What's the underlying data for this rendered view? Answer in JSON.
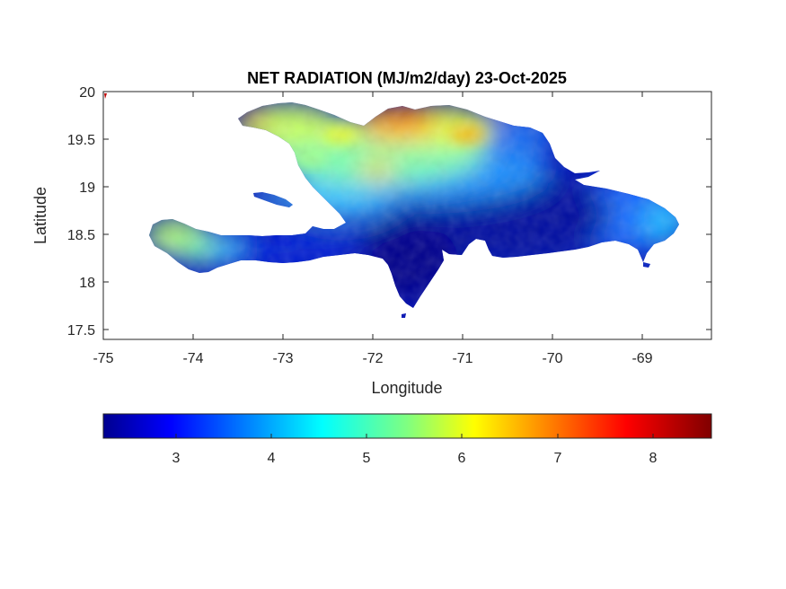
{
  "title": "NET RADIATION (MJ/m2/day) 23-Oct-2025",
  "xlabel": "Longitude",
  "ylabel": "Latitude",
  "x_ticks": [
    "-75",
    "-74",
    "-73",
    "-72",
    "-71",
    "-70",
    "-69"
  ],
  "y_ticks": [
    "20",
    "19.5",
    "19",
    "18.5",
    "18",
    "17.5"
  ],
  "colorbar_ticks": [
    "3",
    "4",
    "5",
    "6",
    "7",
    "8"
  ],
  "chart_data": {
    "type": "heatmap",
    "title": "NET RADIATION (MJ/m2/day) 23-Oct-2025",
    "xlabel": "Longitude",
    "ylabel": "Latitude",
    "xlim": [
      -75,
      -68.23
    ],
    "ylim": [
      17.39,
      20
    ],
    "colormap": "jet",
    "color_range": [
      2.2,
      8.6
    ],
    "colorbar_ticks": [
      3,
      4,
      5,
      6,
      7,
      8
    ],
    "regions": [
      {
        "name": "northwest Haiti peninsula",
        "approx_value": 6.2
      },
      {
        "name": "northern Haiti / north coast",
        "approx_value": 6.8
      },
      {
        "name": "southwest Haiti peninsula",
        "approx_value": 5.5
      },
      {
        "name": "southern coast",
        "approx_value": 3.0
      },
      {
        "name": "central Dominican Republic",
        "approx_value": 2.6
      },
      {
        "name": "eastern Dominican Republic",
        "approx_value": 3.8
      }
    ]
  },
  "colors": {
    "jet": [
      "#00008f",
      "#0000ff",
      "#0080ff",
      "#00ffff",
      "#80ff80",
      "#ffff00",
      "#ff8000",
      "#ff0000",
      "#800000"
    ]
  }
}
